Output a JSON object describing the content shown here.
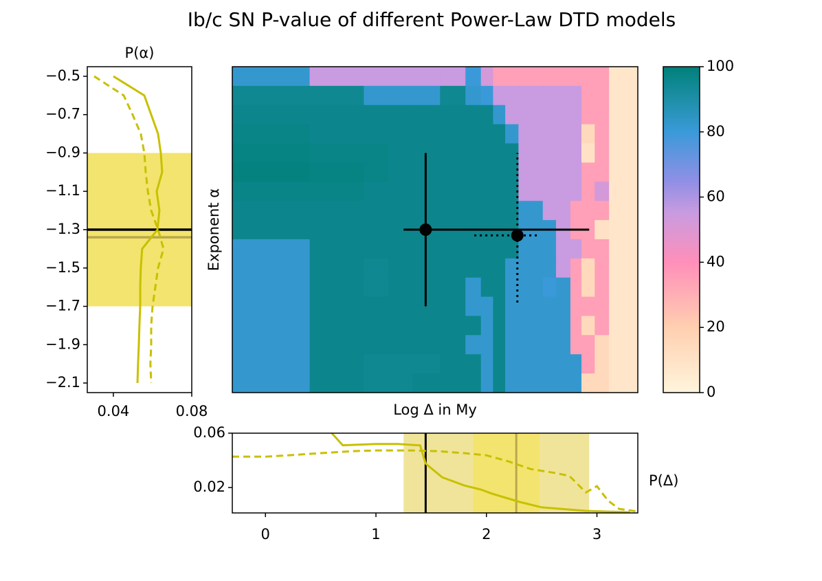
{
  "title": "Ib/c SN P-value of different Power-Law DTD models",
  "chart_data": [
    {
      "type": "heatmap",
      "xlabel": "Log Δ in My",
      "ylabel": "Exponent α",
      "xlim": [
        -0.3,
        3.37
      ],
      "ylim": [
        -2.15,
        -0.45
      ],
      "x_edges": [
        -0.3,
        0.4,
        0.89,
        1.11,
        1.33,
        1.58,
        1.81,
        1.95,
        2.06,
        2.17,
        2.29,
        2.51,
        2.63,
        2.76,
        2.86,
        2.98,
        3.11,
        3.37
      ],
      "y": [
        -0.5,
        -0.6,
        -0.7,
        -0.8,
        -0.9,
        -1.0,
        -1.1,
        -1.2,
        -1.3,
        -1.4,
        -1.5,
        -1.6,
        -1.7,
        -1.8,
        -1.9,
        -2.0,
        -2.1
      ],
      "values": [
        [
          82,
          55,
          55,
          55,
          55,
          55,
          80,
          52,
          35,
          35,
          35,
          35,
          35,
          35,
          35,
          35,
          8
        ],
        [
          95,
          95,
          82,
          82,
          82,
          95,
          82,
          80,
          55,
          55,
          55,
          55,
          55,
          55,
          35,
          35,
          8
        ],
        [
          96,
          96,
          96,
          96,
          96,
          96,
          96,
          96,
          82,
          55,
          55,
          55,
          55,
          55,
          35,
          35,
          8
        ],
        [
          97,
          96,
          96,
          96,
          96,
          96,
          96,
          96,
          96,
          82,
          55,
          55,
          55,
          55,
          15,
          35,
          8
        ],
        [
          98,
          97,
          97,
          96,
          96,
          96,
          96,
          96,
          96,
          96,
          55,
          55,
          55,
          55,
          10,
          35,
          8
        ],
        [
          99,
          98,
          97,
          96,
          96,
          96,
          96,
          96,
          96,
          96,
          55,
          55,
          55,
          55,
          35,
          35,
          8
        ],
        [
          97,
          97,
          96,
          96,
          96,
          96,
          96,
          96,
          96,
          96,
          55,
          55,
          55,
          55,
          35,
          52,
          8
        ],
        [
          96,
          96,
          96,
          96,
          96,
          96,
          96,
          96,
          96,
          96,
          82,
          55,
          55,
          35,
          35,
          35,
          8
        ],
        [
          96,
          96,
          96,
          96,
          96,
          96,
          96,
          96,
          96,
          96,
          82,
          82,
          55,
          35,
          35,
          10,
          8
        ],
        [
          82,
          96,
          96,
          96,
          96,
          96,
          96,
          96,
          96,
          96,
          82,
          82,
          55,
          55,
          35,
          35,
          8
        ],
        [
          82,
          96,
          95,
          96,
          96,
          96,
          96,
          96,
          96,
          82,
          82,
          82,
          55,
          35,
          15,
          35,
          8
        ],
        [
          82,
          96,
          95,
          96,
          96,
          96,
          82,
          96,
          96,
          82,
          82,
          80,
          82,
          35,
          15,
          35,
          8
        ],
        [
          82,
          96,
          96,
          96,
          96,
          96,
          82,
          82,
          96,
          82,
          82,
          82,
          82,
          35,
          35,
          35,
          8
        ],
        [
          82,
          96,
          96,
          96,
          96,
          96,
          96,
          82,
          96,
          82,
          82,
          82,
          82,
          35,
          15,
          35,
          8
        ],
        [
          82,
          96,
          96,
          96,
          96,
          96,
          82,
          82,
          96,
          82,
          82,
          82,
          82,
          35,
          35,
          15,
          8
        ],
        [
          82,
          96,
          95,
          95,
          95,
          96,
          96,
          82,
          96,
          82,
          82,
          82,
          82,
          82,
          35,
          15,
          8
        ],
        [
          82,
          96,
          95,
          95,
          96,
          96,
          96,
          82,
          96,
          82,
          82,
          82,
          82,
          82,
          15,
          15,
          8
        ]
      ],
      "clim": [
        0,
        100
      ],
      "cticks": [
        0,
        20,
        40,
        60,
        80,
        100
      ],
      "colorscale": [
        [
          0,
          "#fff5dc"
        ],
        [
          20,
          "#ffcfb0"
        ],
        [
          40,
          "#ff8fba"
        ],
        [
          55,
          "#c99be0"
        ],
        [
          65,
          "#8f8fe6"
        ],
        [
          80,
          "#3a9ad9"
        ],
        [
          90,
          "#1e8fa8"
        ],
        [
          100,
          "#00807a"
        ]
      ],
      "points": [
        {
          "x": 1.45,
          "y": -1.3,
          "xerr": [
            0.2,
            1.48
          ],
          "yerr": [
            0.4,
            0.4
          ],
          "style": "solid",
          "color": "#000000"
        },
        {
          "x": 2.28,
          "y": -1.33,
          "xerr": [
            0.39,
            0.2
          ],
          "yerr": [
            0.35,
            0.43
          ],
          "style": "dotted",
          "color": "#000000"
        }
      ]
    },
    {
      "type": "line",
      "title": "P(α)",
      "xlim": [
        0.0267,
        0.08
      ],
      "xticks": [
        0.04,
        0.08
      ],
      "ylim": [
        -2.15,
        -0.45
      ],
      "yticks": [
        {
          "value": -0.5,
          "label": "−0.5"
        },
        {
          "value": -0.7,
          "label": "−0.7"
        },
        {
          "value": -0.9,
          "label": "−0.9"
        },
        {
          "value": -1.1,
          "label": "−1.1"
        },
        {
          "value": -1.3,
          "label": "−1.3"
        },
        {
          "value": -1.5,
          "label": "−1.5"
        },
        {
          "value": -1.7,
          "label": "−1.7"
        },
        {
          "value": -1.9,
          "label": "−1.9"
        },
        {
          "value": -2.1,
          "label": "−2.1"
        }
      ],
      "y": [
        -0.5,
        -0.6,
        -0.7,
        -0.8,
        -0.9,
        -1.0,
        -1.1,
        -1.2,
        -1.3,
        -1.4,
        -1.5,
        -1.6,
        -1.7,
        -1.8,
        -1.9,
        -2.0,
        -2.1
      ],
      "bands": [
        {
          "from": -0.9,
          "to": -1.7,
          "color": "#f2e46e"
        }
      ],
      "hlines": [
        {
          "value": -1.3,
          "color": "#000000"
        },
        {
          "value": -1.34,
          "color": "#b8a84a"
        }
      ],
      "series": [
        {
          "color": "#c8c000",
          "linestyle": "solid",
          "values": [
            0.04,
            0.0558,
            0.0593,
            0.0628,
            0.0642,
            0.0649,
            0.0621,
            0.0635,
            0.0625,
            0.0547,
            0.054,
            0.0537,
            0.0537,
            0.0533,
            0.053,
            0.0526,
            0.0523
          ]
        },
        {
          "color": "#c8c000",
          "linestyle": "dashed",
          "values": [
            0.0302,
            0.0453,
            0.0498,
            0.054,
            0.0558,
            0.0565,
            0.0576,
            0.0593,
            0.0628,
            0.0656,
            0.0628,
            0.0614,
            0.06,
            0.0593,
            0.0593,
            0.0589,
            0.0593
          ]
        }
      ]
    },
    {
      "type": "line",
      "ylabel": "P(Δ)",
      "xlim": [
        -0.3,
        3.37
      ],
      "xticks": [
        0,
        1,
        2,
        3
      ],
      "ylim": [
        0.0013,
        0.06
      ],
      "yticks": [
        0.02,
        0.06
      ],
      "bands": [
        {
          "from": 1.25,
          "to": 2.93,
          "color": "#f0e49a"
        },
        {
          "from": 1.88,
          "to": 2.48,
          "color": "#f2e46e"
        }
      ],
      "vlines": [
        {
          "value": 1.45,
          "color": "#000000"
        },
        {
          "value": 2.27,
          "color": "#b8a84a"
        }
      ],
      "series": [
        {
          "color": "#c8c000",
          "linestyle": "solid",
          "x": [
            0.6,
            0.7,
            1.0,
            1.2,
            1.4,
            1.45,
            1.6,
            1.8,
            1.95,
            2.05,
            2.3,
            2.5,
            2.9,
            3.3
          ],
          "values": [
            0.06,
            0.0511,
            0.052,
            0.052,
            0.051,
            0.0376,
            0.0275,
            0.0215,
            0.0185,
            0.0155,
            0.0094,
            0.0054,
            0.0028,
            0.0018
          ]
        },
        {
          "color": "#c8c000",
          "linestyle": "dashed",
          "x": [
            -0.3,
            0.0,
            0.2,
            0.5,
            0.8,
            1.0,
            1.3,
            1.55,
            1.8,
            2.0,
            2.2,
            2.4,
            2.6,
            2.75,
            2.9,
            3.0,
            3.1,
            3.2,
            3.37
          ],
          "values": [
            0.0427,
            0.0427,
            0.0437,
            0.0453,
            0.0468,
            0.0473,
            0.0473,
            0.0468,
            0.0453,
            0.0437,
            0.0392,
            0.0336,
            0.031,
            0.0286,
            0.0164,
            0.021,
            0.0104,
            0.0043,
            0.0023
          ]
        }
      ]
    }
  ]
}
